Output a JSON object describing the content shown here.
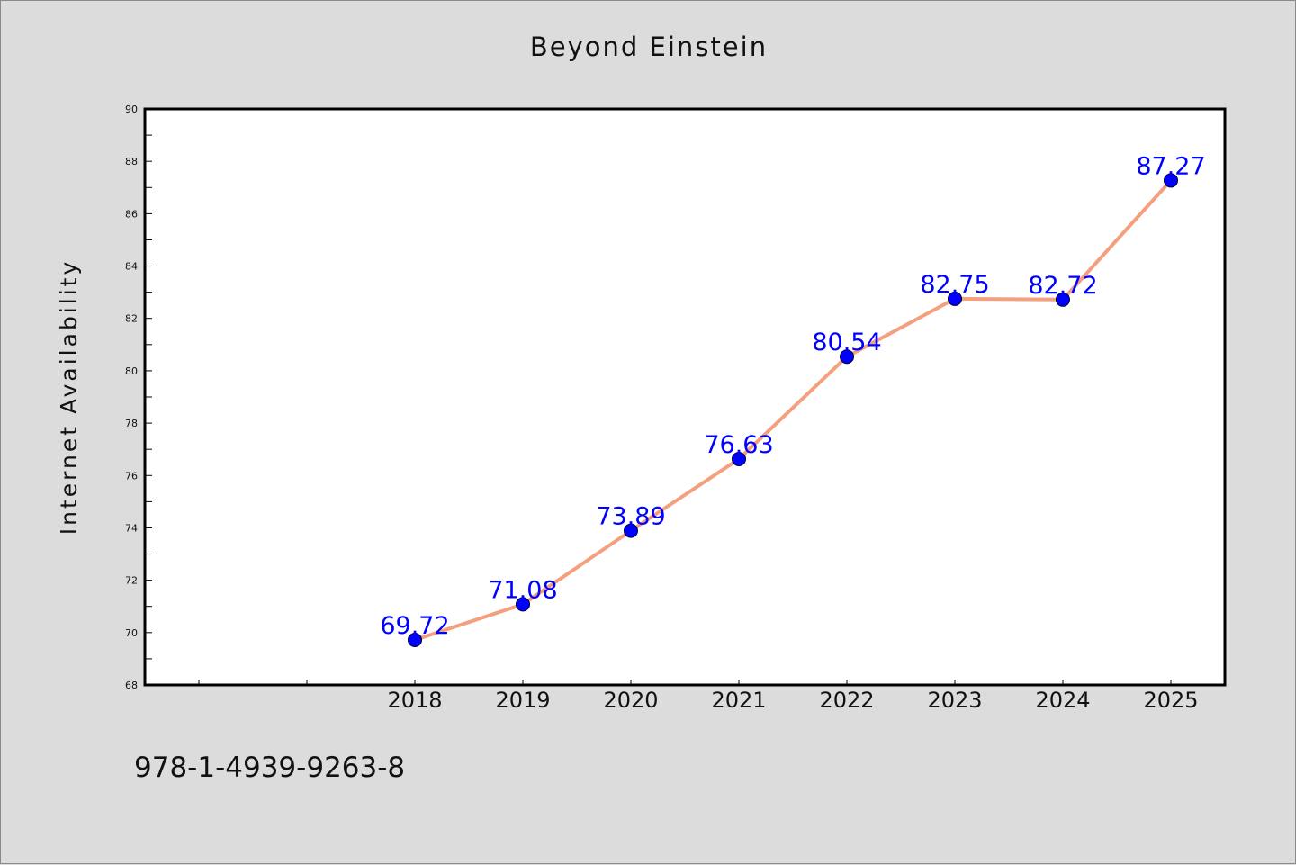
{
  "title": "Beyond Einstein",
  "footer_code": "978-1-4939-9263-8",
  "chart_data": {
    "type": "line",
    "title": "Beyond Einstein",
    "xlabel": "",
    "ylabel": "Internet Availability",
    "categories": [
      "2018",
      "2019",
      "2020",
      "2021",
      "2022",
      "2023",
      "2024",
      "2025"
    ],
    "series": [
      {
        "values": [
          69.72,
          71.08,
          73.89,
          76.63,
          80.54,
          82.75,
          82.72,
          87.27
        ]
      }
    ],
    "ylim": [
      68,
      90
    ],
    "yticks": [
      68,
      70,
      72,
      74,
      76,
      78,
      80,
      82,
      84,
      86,
      88,
      90
    ],
    "grid": false,
    "legend": "none",
    "colors": {
      "line": "#f4a07e",
      "marker": "#0000ff",
      "data_label": "#0000ff",
      "plot_bg": "#ffffff",
      "page_bg": "#dcdcdc"
    }
  }
}
